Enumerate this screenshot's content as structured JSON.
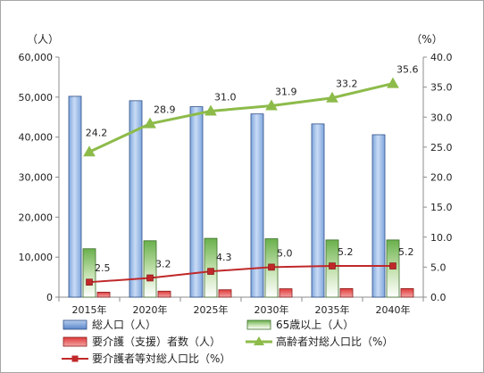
{
  "chart_data": {
    "type": "bar",
    "categories": [
      "2015年",
      "2020年",
      "2025年",
      "2030年",
      "2035年",
      "2040年"
    ],
    "left_axis": {
      "unit": "（人）",
      "min": 0,
      "max": 60000,
      "step": 10000,
      "tick_labels": [
        "0",
        "10,000",
        "20,000",
        "30,000",
        "40,000",
        "50,000",
        "60,000"
      ]
    },
    "right_axis": {
      "unit": "（%）",
      "min": 0,
      "max": 40,
      "step": 5,
      "tick_labels": [
        "0.0",
        "5.0",
        "10.0",
        "15.0",
        "20.0",
        "25.0",
        "30.0",
        "35.0",
        "40.0"
      ]
    },
    "series": [
      {
        "name": "総人口（人）",
        "type": "bar",
        "axis": "left",
        "color": "#7ea6dd",
        "values": [
          50200,
          49100,
          47600,
          45800,
          43300,
          40600
        ]
      },
      {
        "name": "65歳以上（人）",
        "type": "bar",
        "axis": "left",
        "color": "#6ab04c",
        "values": [
          12100,
          14100,
          14700,
          14600,
          14300,
          14300
        ]
      },
      {
        "name": "要介護（支援）者数（人）",
        "type": "bar",
        "axis": "left",
        "color": "#e03a3a",
        "values": [
          1250,
          1500,
          1850,
          2100,
          2150,
          2150
        ]
      },
      {
        "name": "高齢者対総人口比（%）",
        "type": "line",
        "axis": "right",
        "color": "#8dbb4a",
        "marker": "triangle",
        "values": [
          24.2,
          28.9,
          31.0,
          31.9,
          33.2,
          35.6
        ],
        "labels": [
          "24.2",
          "28.9",
          "31.0",
          "31.9",
          "33.2",
          "35.6"
        ]
      },
      {
        "name": "要介護者等対総人口比（%）",
        "type": "line",
        "axis": "right",
        "color": "#c0282a",
        "marker": "square",
        "values": [
          2.5,
          3.2,
          4.3,
          5.0,
          5.2,
          5.2
        ],
        "labels": [
          "2.5",
          "3.2",
          "4.3",
          "5.0",
          "5.2",
          "5.2"
        ]
      }
    ],
    "grid": false,
    "legend_position": "bottom"
  }
}
